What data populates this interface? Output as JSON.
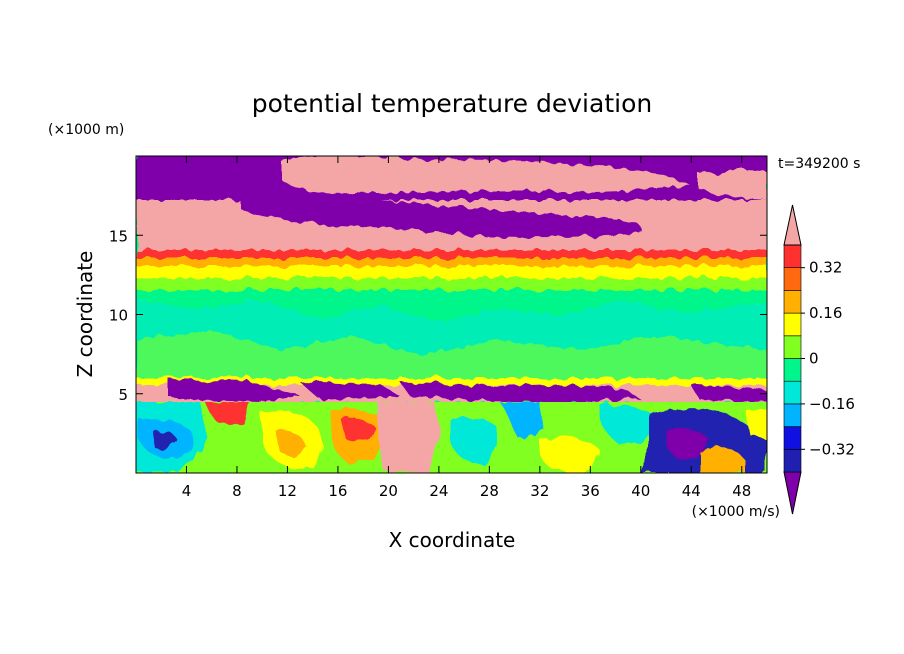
{
  "chart_data": {
    "type": "heatmap",
    "title": "potential temperature deviation",
    "xlabel": "X coordinate",
    "ylabel": "Z coordinate",
    "x_unit": "(×1000 m/s)",
    "y_unit": "(×1000 m)",
    "time_label": "t=349200 s",
    "xlim": [
      0,
      50
    ],
    "ylim": [
      0,
      20
    ],
    "x_ticks": [
      4,
      8,
      12,
      16,
      20,
      24,
      28,
      32,
      36,
      40,
      44,
      48
    ],
    "y_ticks": [
      5,
      10,
      15
    ],
    "colorbar": {
      "levels": [
        -0.4,
        -0.32,
        -0.24,
        -0.16,
        -0.08,
        0,
        0.08,
        0.16,
        0.24,
        0.32,
        0.4
      ],
      "tick_labels": [
        "0.32",
        "0.16",
        "0",
        "−0.16",
        "−0.32"
      ],
      "tick_values": [
        0.32,
        0.16,
        0,
        -0.16,
        -0.32
      ],
      "colors": [
        "#7f00aa",
        "#2020b0",
        "#1010e0",
        "#00b4ff",
        "#00e8d8",
        "#00f58a",
        "#80ff20",
        "#ffff00",
        "#ffb000",
        "#ff6a10",
        "#ff3030",
        "#f4a6a6"
      ],
      "extend": "both"
    },
    "bands": [
      {
        "z": [
          17.5,
          20
        ],
        "value": -0.45,
        "description_level": "below -0.4 with patches above 0.4"
      },
      {
        "z": [
          13.5,
          17.5
        ],
        "value": 0.42
      },
      {
        "z": [
          12.3,
          13.5
        ],
        "value": 0.2
      },
      {
        "z": [
          5.7,
          12.3
        ],
        "value": 0.0
      },
      {
        "z": [
          4.6,
          5.7
        ],
        "value": 0.45
      },
      {
        "z": [
          0,
          4.6
        ],
        "value": "mixed -0.4 to 0.45"
      }
    ]
  }
}
